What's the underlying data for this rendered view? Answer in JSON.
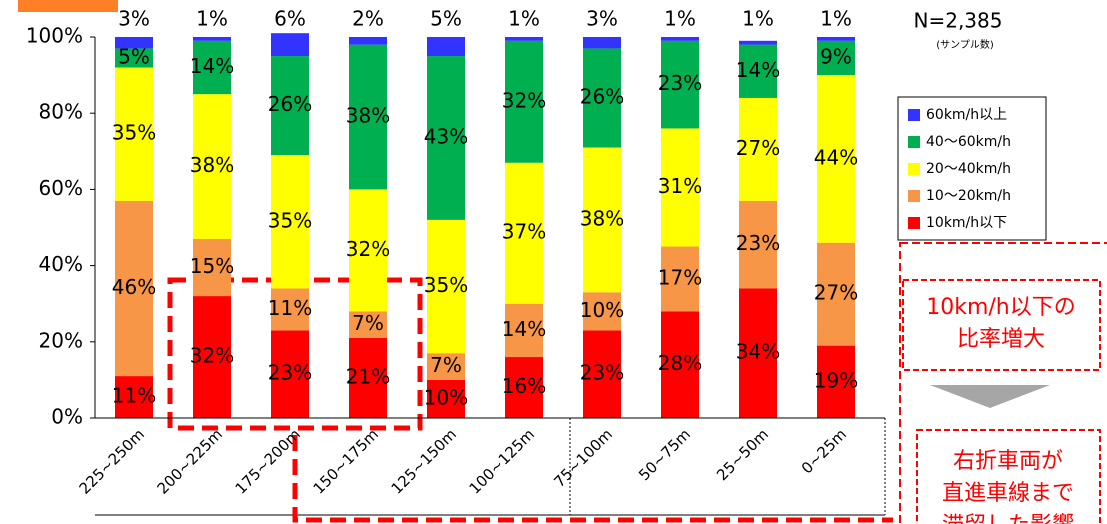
{
  "chart_data": {
    "type": "stacked_bar",
    "categories": [
      "225~250m",
      "200~225m",
      "175~200m",
      "150~175m",
      "125~150m",
      "100~125m",
      "75~100m",
      "50~75m",
      "25~50m",
      "0~25m"
    ],
    "series": [
      {
        "name": "10km/h以下",
        "color": "#ff0000",
        "values": [
          11,
          32,
          23,
          21,
          10,
          16,
          23,
          28,
          34,
          19
        ],
        "value_labels": [
          "11%",
          "32%",
          "23%",
          "21%",
          "10%",
          "16%",
          "23%",
          "28%",
          "34%",
          "19%"
        ]
      },
      {
        "name": "10〜20km/h",
        "color": "#f79646",
        "values": [
          46,
          15,
          11,
          7,
          7,
          14,
          10,
          17,
          23,
          27
        ],
        "value_labels": [
          "46%",
          "15%",
          "11%",
          "7%",
          "7%",
          "14%",
          "10%",
          "17%",
          "23%",
          "27%"
        ]
      },
      {
        "name": "20〜40km/h",
        "color": "#ffff00",
        "values": [
          35,
          38,
          35,
          32,
          35,
          37,
          38,
          31,
          27,
          44
        ],
        "value_labels": [
          "35%",
          "38%",
          "35%",
          "32%",
          "35%",
          "37%",
          "38%",
          "31%",
          "27%",
          "44%"
        ]
      },
      {
        "name": "40〜60km/h",
        "color": "#00b050",
        "values": [
          5,
          14,
          26,
          38,
          43,
          32,
          26,
          23,
          14,
          9
        ],
        "value_labels": [
          "5%",
          "14%",
          "26%",
          "38%",
          "43%",
          "32%",
          "26%",
          "23%",
          "14%",
          "9%"
        ]
      },
      {
        "name": "60km/h以上",
        "color": "#3333ff",
        "values": [
          3,
          1,
          6,
          2,
          5,
          1,
          3,
          1,
          1,
          1
        ],
        "value_labels": [
          "3%",
          "1%",
          "6%",
          "2%",
          "5%",
          "1%",
          "3%",
          "1%",
          "1%",
          "1%"
        ]
      }
    ],
    "ylim": [
      0,
      100
    ],
    "yticks": [
      {
        "value": 0,
        "label": "0%"
      },
      {
        "value": 20,
        "label": "20%"
      },
      {
        "value": 40,
        "label": "40%"
      },
      {
        "value": 60,
        "label": "60%"
      },
      {
        "value": 80,
        "label": "80%"
      },
      {
        "value": 100,
        "label": "100%"
      }
    ],
    "sample_size": "N=2,385",
    "sample_label": "(サンプル数)",
    "annotations": [
      [
        "10km/h以下の",
        "比率増大"
      ],
      [
        "右折車両が",
        "直進車線まで",
        "滞留した影響"
      ]
    ]
  }
}
